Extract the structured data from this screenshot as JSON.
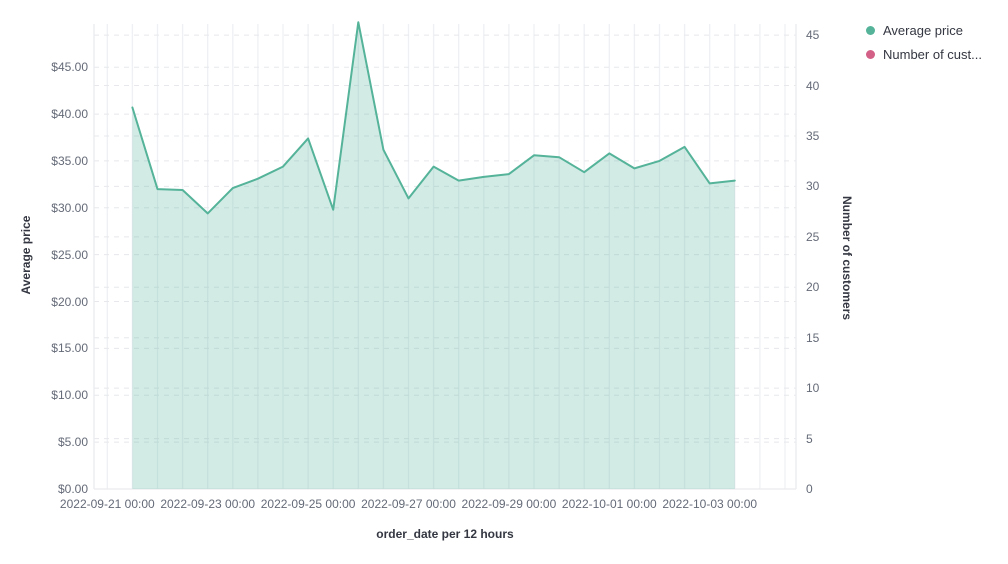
{
  "legend": {
    "position": "top-right",
    "items": [
      {
        "label": "Average price",
        "color": "#54B399"
      },
      {
        "label": "Number of cust...",
        "color": "#D36086"
      }
    ]
  },
  "chart_data": {
    "type": "area",
    "title": "",
    "xlabel": "order_date per 12 hours",
    "grid": true,
    "legend_position": "top-right",
    "x_axis": {
      "tick_labels": [
        "2022-09-21 00:00",
        "2022-09-23 00:00",
        "2022-09-25 00:00",
        "2022-09-27 00:00",
        "2022-09-29 00:00",
        "2022-10-01 00:00",
        "2022-10-03 00:00"
      ]
    },
    "y_axis_left": {
      "title": "Average price",
      "tick_labels": [
        "$0.00",
        "$5.00",
        "$10.00",
        "$15.00",
        "$20.00",
        "$25.00",
        "$30.00",
        "$35.00",
        "$40.00",
        "$45.00"
      ],
      "tick_values": [
        0,
        5,
        10,
        15,
        20,
        25,
        30,
        35,
        40,
        45
      ],
      "range": [
        0,
        45
      ]
    },
    "y_axis_right": {
      "title": "Number of customers",
      "tick_labels": [
        "0",
        "5",
        "10",
        "15",
        "20",
        "25",
        "30",
        "35",
        "40",
        "45"
      ],
      "tick_values": [
        0,
        5,
        10,
        15,
        20,
        25,
        30,
        35,
        40,
        45
      ],
      "range": [
        0,
        45
      ]
    },
    "series": [
      {
        "name": "Average price",
        "axis": "left",
        "color": "#54B399",
        "x": [
          "2022-09-21 12:00",
          "2022-09-22 00:00",
          "2022-09-22 12:00",
          "2022-09-23 00:00",
          "2022-09-23 12:00",
          "2022-09-24 00:00",
          "2022-09-24 12:00",
          "2022-09-25 00:00",
          "2022-09-25 12:00",
          "2022-09-26 00:00",
          "2022-09-26 12:00",
          "2022-09-27 00:00",
          "2022-09-27 12:00",
          "2022-09-28 00:00",
          "2022-09-28 12:00",
          "2022-09-29 00:00",
          "2022-09-29 12:00",
          "2022-09-30 00:00",
          "2022-09-30 12:00",
          "2022-10-01 00:00",
          "2022-10-01 12:00",
          "2022-10-02 00:00",
          "2022-10-02 12:00",
          "2022-10-03 00:00",
          "2022-10-03 12:00"
        ],
        "values": [
          40.7,
          32.0,
          31.9,
          29.4,
          32.1,
          33.1,
          34.4,
          37.4,
          29.8,
          49.8,
          36.2,
          31.0,
          34.4,
          32.9,
          33.3,
          33.6,
          35.6,
          35.4,
          33.8,
          35.8,
          34.2,
          35.0,
          36.5,
          32.6,
          32.9
        ]
      },
      {
        "name": "Number of customers",
        "axis": "right",
        "color": "#D36086",
        "x": [],
        "values": [],
        "visible_in_plot": false
      }
    ]
  }
}
